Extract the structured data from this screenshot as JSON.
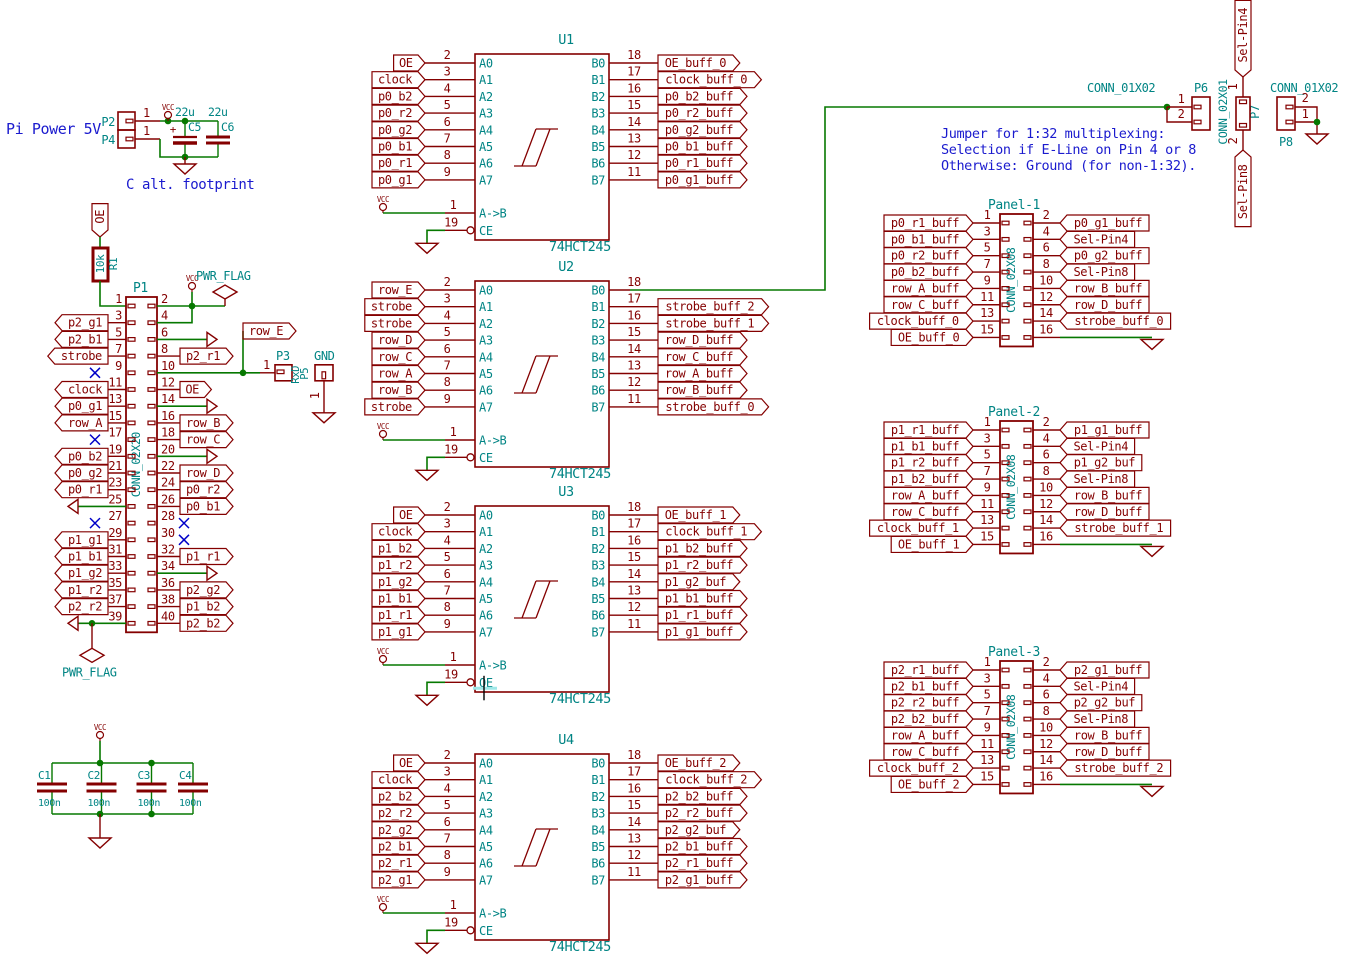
{
  "colors": {
    "wire": "#067800",
    "component": "#840000",
    "field": "#008484",
    "note": "#1a1ace",
    "noconnect": "#0000c8",
    "junction": "#067800",
    "cursor": "#000000",
    "highlight": "#9fe8e8",
    "background": "#ffffff"
  },
  "misc": {
    "vcc": "VCC",
    "pwr_flag": "PWR_FLAG",
    "plus": "+"
  },
  "power": {
    "title": "Pi Power 5V",
    "p2_ref": "P2",
    "p2_pin": "1",
    "p4_ref": "P4",
    "p4_pin": "1",
    "c5_ref": "C5",
    "c5_val": "22u",
    "c6_ref": "C6",
    "c6_val": "22u",
    "footprint_note": "C alt. footprint"
  },
  "oe_pullup": {
    "label": "OE",
    "r_ref": "R1",
    "r_val": "10k"
  },
  "p1": {
    "ref": "P1",
    "value": "CONN_02X20",
    "left": [
      {
        "num": "1",
        "kind": "r1wire"
      },
      {
        "num": "3",
        "label": "p2_g1"
      },
      {
        "num": "5",
        "label": "p2_b1"
      },
      {
        "num": "7",
        "label": "strobe"
      },
      {
        "num": "9",
        "kind": "nc"
      },
      {
        "num": "11",
        "label": "clock"
      },
      {
        "num": "13",
        "label": "p0_g1"
      },
      {
        "num": "15",
        "label": "row_A"
      },
      {
        "num": "17",
        "kind": "nc"
      },
      {
        "num": "19",
        "label": "p0_b2"
      },
      {
        "num": "21",
        "label": "p0_g2"
      },
      {
        "num": "23",
        "label": "p0_r1"
      },
      {
        "num": "25",
        "kind": "gnd"
      },
      {
        "num": "27",
        "kind": "nc"
      },
      {
        "num": "29",
        "label": "p1_g1"
      },
      {
        "num": "31",
        "label": "p1_b1"
      },
      {
        "num": "33",
        "label": "p1_g2"
      },
      {
        "num": "35",
        "label": "p1_r2"
      },
      {
        "num": "37",
        "label": "p2_r2"
      },
      {
        "num": "39",
        "kind": "gnd_flag"
      }
    ],
    "right": [
      {
        "num": "2",
        "kind": "vcc_flag"
      },
      {
        "num": "4",
        "kind": "vcc_join"
      },
      {
        "num": "6",
        "kind": "gnd"
      },
      {
        "num": "8",
        "label": "p2_r1"
      },
      {
        "num": "10",
        "kind": "rowE"
      },
      {
        "num": "12",
        "label": "OE"
      },
      {
        "num": "14",
        "kind": "gnd"
      },
      {
        "num": "16",
        "label": "row_B"
      },
      {
        "num": "18",
        "label": "row_C"
      },
      {
        "num": "20",
        "kind": "gnd"
      },
      {
        "num": "22",
        "label": "row_D"
      },
      {
        "num": "24",
        "label": "p0_r2"
      },
      {
        "num": "26",
        "label": "p0_b1"
      },
      {
        "num": "28",
        "kind": "nc"
      },
      {
        "num": "30",
        "kind": "nc"
      },
      {
        "num": "32",
        "label": "p1_r1"
      },
      {
        "num": "34",
        "kind": "gnd"
      },
      {
        "num": "36",
        "label": "p2_g2"
      },
      {
        "num": "38",
        "label": "p1_b2"
      },
      {
        "num": "40",
        "label": "p2_b2"
      }
    ]
  },
  "serial": {
    "row_e_label": "row_E",
    "p3_ref": "P3",
    "p3_value": "RxD",
    "p3_pin": "1",
    "p5_ref": "P5",
    "p5_value": "GND",
    "p5_pin": "1"
  },
  "buffers": [
    {
      "ref": "U1",
      "value": "74HCT245",
      "a_pins": [
        {
          "num": "2",
          "name": "A0",
          "label": "OE"
        },
        {
          "num": "3",
          "name": "A1",
          "label": "clock"
        },
        {
          "num": "4",
          "name": "A2",
          "label": "p0_b2"
        },
        {
          "num": "5",
          "name": "A3",
          "label": "p0_r2"
        },
        {
          "num": "6",
          "name": "A4",
          "label": "p0_g2"
        },
        {
          "num": "7",
          "name": "A5",
          "label": "p0_b1"
        },
        {
          "num": "8",
          "name": "A6",
          "label": "p0_r1"
        },
        {
          "num": "9",
          "name": "A7",
          "label": "p0_g1"
        }
      ],
      "b_pins": [
        {
          "num": "18",
          "name": "B0",
          "label": "OE_buff_0"
        },
        {
          "num": "17",
          "name": "B1",
          "label": "clock_buff_0"
        },
        {
          "num": "16",
          "name": "B2",
          "label": "p0_b2_buff"
        },
        {
          "num": "15",
          "name": "B3",
          "label": "p0_r2_buff"
        },
        {
          "num": "14",
          "name": "B4",
          "label": "p0_g2_buff"
        },
        {
          "num": "13",
          "name": "B5",
          "label": "p0_b1_buff"
        },
        {
          "num": "12",
          "name": "B6",
          "label": "p0_r1_buff"
        },
        {
          "num": "11",
          "name": "B7",
          "label": "p0_g1_buff"
        }
      ],
      "ctrl": [
        {
          "num": "1",
          "name": "A->B"
        },
        {
          "num": "19",
          "name": "CE"
        }
      ]
    },
    {
      "ref": "U2",
      "value": "74HCT245",
      "a_pins": [
        {
          "num": "2",
          "name": "A0",
          "label": "row_E"
        },
        {
          "num": "3",
          "name": "A1",
          "label": "strobe"
        },
        {
          "num": "4",
          "name": "A2",
          "label": "strobe"
        },
        {
          "num": "5",
          "name": "A3",
          "label": "row_D"
        },
        {
          "num": "6",
          "name": "A4",
          "label": "row_C"
        },
        {
          "num": "7",
          "name": "A5",
          "label": "row_A"
        },
        {
          "num": "8",
          "name": "A6",
          "label": "row_B"
        },
        {
          "num": "9",
          "name": "A7",
          "label": "strobe"
        }
      ],
      "b_pins": [
        {
          "num": "18",
          "name": "B0",
          "label": null
        },
        {
          "num": "17",
          "name": "B1",
          "label": "strobe_buff_2"
        },
        {
          "num": "16",
          "name": "B2",
          "label": "strobe_buff_1"
        },
        {
          "num": "15",
          "name": "B3",
          "label": "row_D_buff"
        },
        {
          "num": "14",
          "name": "B4",
          "label": "row_C_buff"
        },
        {
          "num": "13",
          "name": "B5",
          "label": "row_A_buff"
        },
        {
          "num": "12",
          "name": "B6",
          "label": "row_B_buff"
        },
        {
          "num": "11",
          "name": "B7",
          "label": "strobe_buff_0"
        }
      ],
      "ctrl": [
        {
          "num": "1",
          "name": "A->B"
        },
        {
          "num": "19",
          "name": "CE"
        }
      ]
    },
    {
      "ref": "U3",
      "value": "74HCT245",
      "a_pins": [
        {
          "num": "2",
          "name": "A0",
          "label": "OE"
        },
        {
          "num": "3",
          "name": "A1",
          "label": "clock"
        },
        {
          "num": "4",
          "name": "A2",
          "label": "p1_b2"
        },
        {
          "num": "5",
          "name": "A3",
          "label": "p1_r2"
        },
        {
          "num": "6",
          "name": "A4",
          "label": "p1_g2"
        },
        {
          "num": "7",
          "name": "A5",
          "label": "p1_b1"
        },
        {
          "num": "8",
          "name": "A6",
          "label": "p1_r1"
        },
        {
          "num": "9",
          "name": "A7",
          "label": "p1_g1"
        }
      ],
      "b_pins": [
        {
          "num": "18",
          "name": "B0",
          "label": "OE_buff_1"
        },
        {
          "num": "17",
          "name": "B1",
          "label": "clock_buff_1"
        },
        {
          "num": "16",
          "name": "B2",
          "label": "p1_b2_buff"
        },
        {
          "num": "15",
          "name": "B3",
          "label": "p1_r2_buff"
        },
        {
          "num": "14",
          "name": "B4",
          "label": "p1_g2_buf"
        },
        {
          "num": "13",
          "name": "B5",
          "label": "p1_b1_buff"
        },
        {
          "num": "12",
          "name": "B6",
          "label": "p1_r1_buff"
        },
        {
          "num": "11",
          "name": "B7",
          "label": "p1_g1_buff"
        }
      ],
      "ctrl": [
        {
          "num": "1",
          "name": "A->B"
        },
        {
          "num": "19",
          "name": "OE"
        }
      ]
    },
    {
      "ref": "U4",
      "value": "74HCT245",
      "a_pins": [
        {
          "num": "2",
          "name": "A0",
          "label": "OE"
        },
        {
          "num": "3",
          "name": "A1",
          "label": "clock"
        },
        {
          "num": "4",
          "name": "A2",
          "label": "p2_b2"
        },
        {
          "num": "5",
          "name": "A3",
          "label": "p2_r2"
        },
        {
          "num": "6",
          "name": "A4",
          "label": "p2_g2"
        },
        {
          "num": "7",
          "name": "A5",
          "label": "p2_b1"
        },
        {
          "num": "8",
          "name": "A6",
          "label": "p2_r1"
        },
        {
          "num": "9",
          "name": "A7",
          "label": "p2_g1"
        }
      ],
      "b_pins": [
        {
          "num": "18",
          "name": "B0",
          "label": "OE_buff_2"
        },
        {
          "num": "17",
          "name": "B1",
          "label": "clock_buff_2"
        },
        {
          "num": "16",
          "name": "B2",
          "label": "p2_b2_buff"
        },
        {
          "num": "15",
          "name": "B3",
          "label": "p2_r2_buff"
        },
        {
          "num": "14",
          "name": "B4",
          "label": "p2_g2_buf"
        },
        {
          "num": "13",
          "name": "B5",
          "label": "p2_b1_buff"
        },
        {
          "num": "12",
          "name": "B6",
          "label": "p2_r1_buff"
        },
        {
          "num": "11",
          "name": "B7",
          "label": "p2_g1_buff"
        }
      ],
      "ctrl": [
        {
          "num": "1",
          "name": "A->B"
        },
        {
          "num": "19",
          "name": "CE"
        }
      ]
    }
  ],
  "panels": [
    {
      "title": "Panel-1",
      "value": "CONN_02X08",
      "left": [
        {
          "num": "1",
          "label": "p0_r1_buff"
        },
        {
          "num": "3",
          "label": "p0_b1_buff"
        },
        {
          "num": "5",
          "label": "p0_r2_buff"
        },
        {
          "num": "7",
          "label": "p0_b2_buff"
        },
        {
          "num": "9",
          "label": "row_A_buff"
        },
        {
          "num": "11",
          "label": "row_C_buff"
        },
        {
          "num": "13",
          "label": "clock_buff_0"
        },
        {
          "num": "15",
          "label": "OE_buff_0"
        }
      ],
      "right": [
        {
          "num": "2",
          "label": "p0_g1_buff"
        },
        {
          "num": "4",
          "label": "Sel-Pin4"
        },
        {
          "num": "6",
          "label": "p0_g2_buff"
        },
        {
          "num": "8",
          "label": "Sel-Pin8"
        },
        {
          "num": "10",
          "label": "row_B_buff"
        },
        {
          "num": "12",
          "label": "row_D_buff"
        },
        {
          "num": "14",
          "label": "strobe_buff_0"
        },
        {
          "num": "16",
          "label": null
        }
      ]
    },
    {
      "title": "Panel-2",
      "value": "CONN_02X08",
      "left": [
        {
          "num": "1",
          "label": "p1_r1_buff"
        },
        {
          "num": "3",
          "label": "p1_b1_buff"
        },
        {
          "num": "5",
          "label": "p1_r2_buff"
        },
        {
          "num": "7",
          "label": "p1_b2_buff"
        },
        {
          "num": "9",
          "label": "row_A_buff"
        },
        {
          "num": "11",
          "label": "row_C_buff"
        },
        {
          "num": "13",
          "label": "clock_buff_1"
        },
        {
          "num": "15",
          "label": "OE_buff_1"
        }
      ],
      "right": [
        {
          "num": "2",
          "label": "p1_g1_buff"
        },
        {
          "num": "4",
          "label": "Sel-Pin4"
        },
        {
          "num": "6",
          "label": "p1_g2_buf"
        },
        {
          "num": "8",
          "label": "Sel-Pin8"
        },
        {
          "num": "10",
          "label": "row_B_buff"
        },
        {
          "num": "12",
          "label": "row_D_buff"
        },
        {
          "num": "14",
          "label": "strobe_buff_1"
        },
        {
          "num": "16",
          "label": null
        }
      ]
    },
    {
      "title": "Panel-3",
      "value": "CONN_02X08",
      "left": [
        {
          "num": "1",
          "label": "p2_r1_buff"
        },
        {
          "num": "3",
          "label": "p2_b1_buff"
        },
        {
          "num": "5",
          "label": "p2_r2_buff"
        },
        {
          "num": "7",
          "label": "p2_b2_buff"
        },
        {
          "num": "9",
          "label": "row_A_buff"
        },
        {
          "num": "11",
          "label": "row_C_buff"
        },
        {
          "num": "13",
          "label": "clock_buff_2"
        },
        {
          "num": "15",
          "label": "OE_buff_2"
        }
      ],
      "right": [
        {
          "num": "2",
          "label": "p2_g1_buff"
        },
        {
          "num": "4",
          "label": "Sel-Pin4"
        },
        {
          "num": "6",
          "label": "p2_g2_buf"
        },
        {
          "num": "8",
          "label": "Sel-Pin8"
        },
        {
          "num": "10",
          "label": "row_B_buff"
        },
        {
          "num": "12",
          "label": "row_D_buff"
        },
        {
          "num": "14",
          "label": "strobe_buff_2"
        },
        {
          "num": "16",
          "label": null
        }
      ]
    }
  ],
  "jumpers": {
    "note1": "Jumper for 1:32 multiplexing:",
    "note2": "Selection if E-Line on Pin 4 or 8",
    "note3": "Otherwise: Ground (for non-1:32).",
    "p6": {
      "ref": "P6",
      "value": "CONN_01X02",
      "pin1": "1",
      "pin2": "2"
    },
    "p7": {
      "ref": "P7",
      "value": "CONN_02X01",
      "pin1": "1",
      "pin2": "2",
      "top_label": "Sel-Pin4",
      "bottom_label": "Sel-Pin8"
    },
    "p8": {
      "ref": "P8",
      "value": "CONN_01X02",
      "pin1": "1",
      "pin2": "2"
    }
  },
  "decoupling": {
    "caps": [
      {
        "ref": "C1",
        "val": "100n"
      },
      {
        "ref": "C2",
        "val": "100n"
      },
      {
        "ref": "C3",
        "val": "100n"
      },
      {
        "ref": "C4",
        "val": "100n"
      }
    ]
  }
}
